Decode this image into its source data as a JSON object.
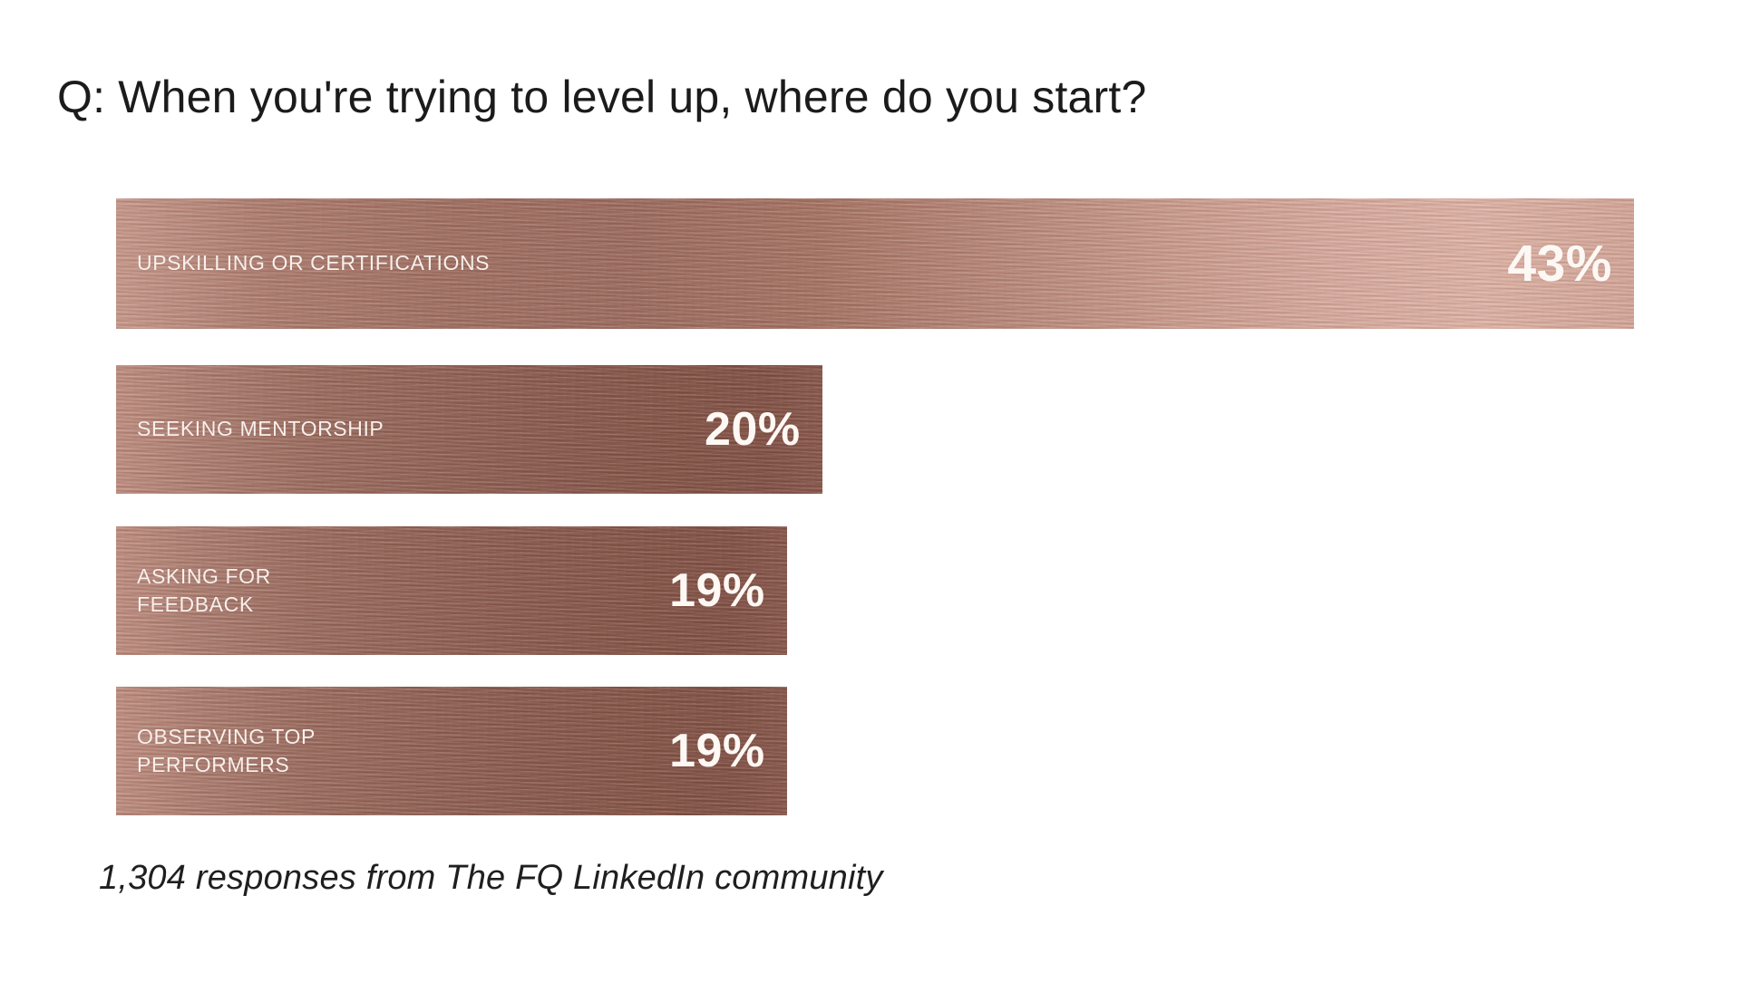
{
  "page": {
    "background": "#ffffff"
  },
  "chart_data": {
    "type": "bar",
    "orientation": "horizontal",
    "title": "Q: When you're trying to level up, where do you start?",
    "source_note": "1,304 responses from The FQ LinkedIn community",
    "categories": [
      "UPSKILLING OR CERTIFICATIONS",
      "SEEKING MENTORSHIP",
      "ASKING FOR FEEDBACK",
      "OBSERVING TOP PERFORMERS"
    ],
    "values": [
      43,
      20,
      19,
      19
    ],
    "unit": "%",
    "axis_max": 43,
    "grid": false,
    "legend": false,
    "xlabel": "",
    "ylabel": "",
    "rows": [
      {
        "label": "UPSKILLING OR CERTIFICATIONS",
        "value": 43,
        "value_label": "43%"
      },
      {
        "label": "SEEKING MENTORSHIP",
        "value": 20,
        "value_label": "20%"
      },
      {
        "label": "ASKING FOR\nFEEDBACK",
        "value": 19,
        "value_label": "19%"
      },
      {
        "label": "OBSERVING TOP\nPERFORMERS",
        "value": 19,
        "value_label": "19%"
      }
    ],
    "colors": {
      "bar_light_metal_stops": [
        "#c89a8d",
        "#9c6c60",
        "#b8897b",
        "#e0b5a8",
        "#d5a89b"
      ],
      "bar_dark_metal_stops": [
        "#c39285",
        "#946558",
        "#865649",
        "#8a594d"
      ],
      "bar_label_text": "#f8f0ec",
      "bar_value_text": "#fdf8f4",
      "title_text": "#1b1b1b",
      "source_text": "#1f1f1f",
      "background": "#ffffff"
    }
  }
}
